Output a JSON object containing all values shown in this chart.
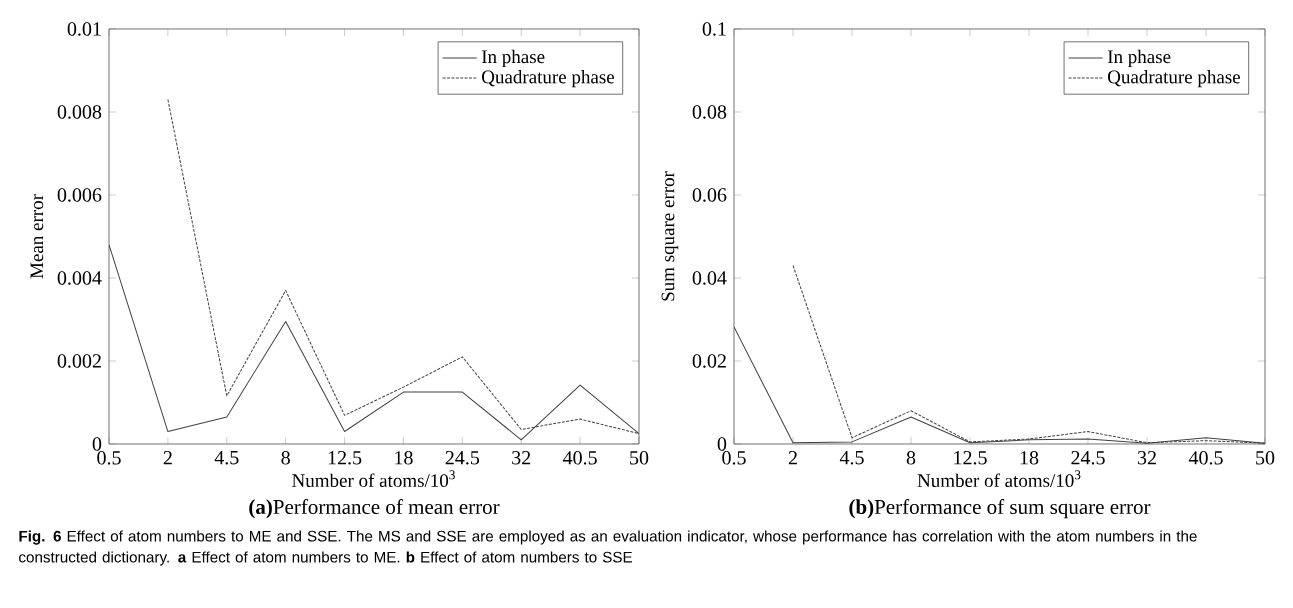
{
  "chart_data": [
    {
      "type": "line",
      "title": "**(a)**Performance of mean error",
      "xlabel": "Number of atoms/10$^{3}$",
      "ylabel": "Mean error",
      "categories": [
        "0.5",
        "2",
        "4.5",
        "8",
        "12.5",
        "18",
        "24.5",
        "32",
        "40.5",
        "50"
      ],
      "series": [
        {
          "name": "In phase",
          "color": "#404040",
          "line_style": "solid",
          "values": [
            0.0048,
            0.0003,
            0.00065,
            0.00295,
            0.0003,
            0.00125,
            0.00125,
            0.0001,
            0.00142,
            0.00025
          ]
        },
        {
          "name": "Quadrature phase",
          "color": "#404040",
          "line_style": "dotted",
          "values": [
            null,
            0.0083,
            0.00116,
            0.0037,
            0.00069,
            0.00137,
            0.0021,
            0.00035,
            0.0006,
            0.00025
          ]
        }
      ],
      "ylim": [
        0,
        0.01
      ],
      "yticks": [
        0,
        0.002,
        0.004,
        0.006,
        0.008,
        0.01
      ],
      "legend": "top right",
      "marker": "none"
    },
    {
      "type": "line",
      "title": "**(b)**Performance of sum square error",
      "xlabel": "Number of atoms/10$^{3}$",
      "ylabel": "Sum square error",
      "categories": [
        "0.5",
        "2",
        "4.5",
        "8",
        "12.5",
        "18",
        "24.5",
        "32",
        "40.5",
        "50"
      ],
      "series": [
        {
          "name": "In phase",
          "color": "#404040",
          "line_style": "solid",
          "values": [
            0.0282,
            0.0003,
            0.0005,
            0.0065,
            0.0003,
            0.001,
            0.0012,
            0.0002,
            0.0015,
            0.0002
          ]
        },
        {
          "name": "Quadrature phase",
          "color": "#404040",
          "line_style": "dotted",
          "values": [
            null,
            0.043,
            0.0015,
            0.008,
            0.0005,
            0.0012,
            0.003,
            0.0003,
            0.0008,
            0.0002
          ]
        }
      ],
      "ylim": [
        0,
        0.1
      ],
      "yticks": [
        0,
        0.02,
        0.04,
        0.06,
        0.08,
        0.1
      ],
      "legend": "top right",
      "marker": "none",
      "annotations": [
        "**Fig. 6** Effect of atom numbers to ME and SSE. The MS and SSE are employed as an evaluation indicator, whose performance has correlation with the atom numbers in the constructed dictionary. **a** Effect of atom numbers to ME. **b** Effect of atom numbers to SSE"
      ]
    }
  ]
}
